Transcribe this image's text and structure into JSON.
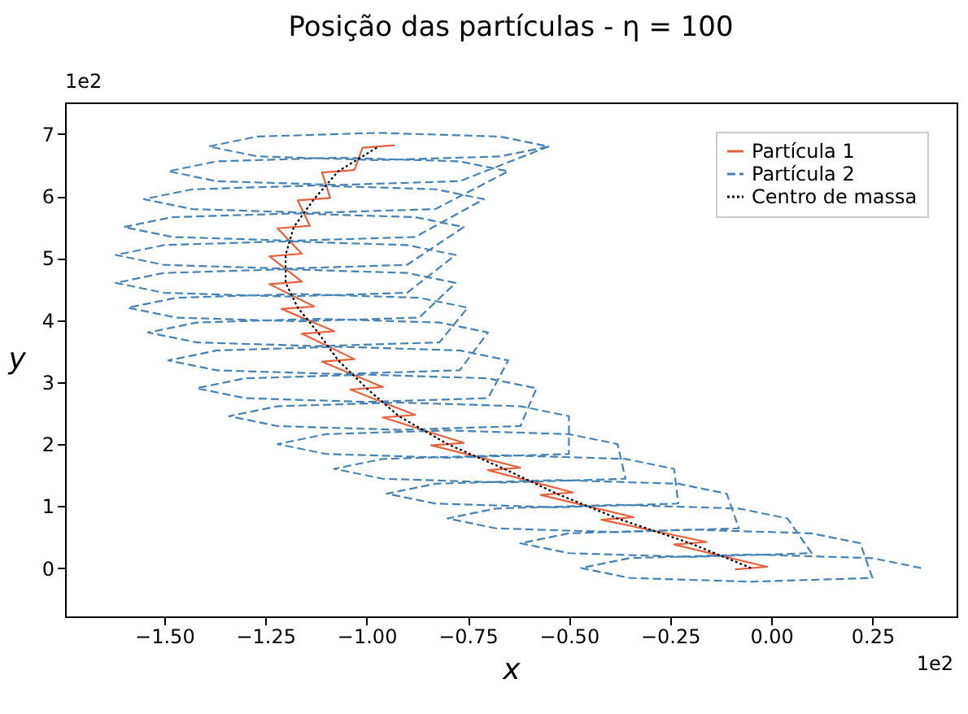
{
  "chart_data": {
    "type": "line",
    "title": "Posição das partículas - η = 100",
    "xlabel": "x",
    "ylabel": "y",
    "annotations": [
      "1e2",
      "1e2"
    ],
    "xlim": [
      -1.745,
      0.458
    ],
    "ylim": [
      -0.78,
      7.51
    ],
    "xticks": [
      {
        "value": -1.5,
        "label": "−1.50"
      },
      {
        "value": -1.25,
        "label": "−1.25"
      },
      {
        "value": -1.0,
        "label": "−1.00"
      },
      {
        "value": -0.75,
        "label": "−0.75"
      },
      {
        "value": -0.5,
        "label": "−0.50"
      },
      {
        "value": -0.25,
        "label": "−0.25"
      },
      {
        "value": 0,
        "label": "0.00"
      },
      {
        "value": 0.25,
        "label": "0.25"
      }
    ],
    "yticks": [
      0,
      1,
      2,
      3,
      4,
      5,
      6,
      7
    ],
    "legend": "top right",
    "marker": "none",
    "series": [
      {
        "name": "Partícula 1",
        "color": "#e8603c",
        "line_style": "solid",
        "x": [
          -0.09,
          -0.01,
          -0.24,
          -0.16,
          -0.42,
          -0.34,
          -0.57,
          -0.49,
          -0.7,
          -0.62,
          -0.84,
          -0.76,
          -0.96,
          -0.88,
          -1.04,
          -0.96,
          -1.11,
          -1.03,
          -1.16,
          -1.08,
          -1.21,
          -1.13,
          -1.24,
          -1.16,
          -1.24,
          -1.16,
          -1.22,
          -1.14,
          -1.17,
          -1.09,
          -1.11,
          -1.03,
          -1.01,
          -0.93
        ],
        "values": [
          -0.02,
          0.02,
          0.38,
          0.42,
          0.78,
          0.82,
          1.18,
          1.22,
          1.58,
          1.62,
          1.98,
          2.02,
          2.43,
          2.47,
          2.88,
          2.92,
          3.33,
          3.37,
          3.78,
          3.82,
          4.18,
          4.22,
          4.58,
          4.62,
          5.03,
          5.07,
          5.48,
          5.52,
          5.93,
          5.97,
          6.38,
          6.42,
          6.78,
          6.82
        ]
      },
      {
        "name": "Partícula 2",
        "color": "#4682b4",
        "line_style": "dashed",
        "x": [
          0.37,
          0.25,
          -0.05,
          -0.35,
          -0.47,
          -0.35,
          -0.05,
          0.25,
          0.22,
          0.1,
          -0.2,
          -0.5,
          -0.62,
          -0.5,
          -0.2,
          0.1,
          0.04,
          -0.08,
          -0.38,
          -0.68,
          -0.8,
          -0.68,
          -0.38,
          -0.08,
          -0.11,
          -0.23,
          -0.53,
          -0.83,
          -0.95,
          -0.83,
          -0.53,
          -0.23,
          -0.24,
          -0.36,
          -0.66,
          -0.96,
          -1.08,
          -0.96,
          -0.66,
          -0.36,
          -0.38,
          -0.5,
          -0.8,
          -1.1,
          -1.22,
          -1.1,
          -0.8,
          -0.5,
          -0.5,
          -0.62,
          -0.92,
          -1.22,
          -1.34,
          -1.22,
          -0.92,
          -0.62,
          -0.58,
          -0.7,
          -1.0,
          -1.3,
          -1.42,
          -1.3,
          -1.0,
          -0.7,
          -0.65,
          -0.77,
          -1.07,
          -1.37,
          -1.49,
          -1.37,
          -1.07,
          -0.77,
          -0.7,
          -0.82,
          -1.12,
          -1.42,
          -1.54,
          -1.42,
          -1.12,
          -0.82,
          -0.75,
          -0.87,
          -1.17,
          -1.47,
          -1.59,
          -1.47,
          -1.17,
          -0.87,
          -0.78,
          -0.9,
          -1.2,
          -1.5,
          -1.62,
          -1.5,
          -1.2,
          -0.9,
          -0.78,
          -0.9,
          -1.2,
          -1.5,
          -1.62,
          -1.5,
          -1.2,
          -0.9,
          -0.76,
          -0.88,
          -1.18,
          -1.48,
          -1.6,
          -1.48,
          -1.18,
          -0.88,
          -0.71,
          -0.83,
          -1.13,
          -1.43,
          -1.55,
          -1.43,
          -1.13,
          -0.83,
          -0.65,
          -0.77,
          -1.07,
          -1.37,
          -1.49,
          -1.37,
          -1.07,
          -0.77,
          -0.55,
          -0.67,
          -0.97,
          -1.27,
          -1.39,
          -1.27,
          -0.97,
          -0.67,
          -0.55
        ],
        "values": [
          0,
          0.16,
          0.22,
          0.16,
          0,
          -0.16,
          -0.22,
          -0.16,
          0.4,
          0.56,
          0.62,
          0.56,
          0.4,
          0.24,
          0.18,
          0.24,
          0.8,
          0.96,
          1.02,
          0.96,
          0.8,
          0.64,
          0.58,
          0.64,
          1.2,
          1.36,
          1.42,
          1.36,
          1.2,
          1.04,
          0.98,
          1.04,
          1.6,
          1.76,
          1.82,
          1.76,
          1.6,
          1.44,
          1.38,
          1.44,
          2.0,
          2.16,
          2.22,
          2.16,
          2.0,
          1.84,
          1.78,
          1.84,
          2.45,
          2.61,
          2.67,
          2.61,
          2.45,
          2.29,
          2.23,
          2.29,
          2.9,
          3.06,
          3.12,
          3.06,
          2.9,
          2.74,
          2.68,
          2.74,
          3.35,
          3.51,
          3.57,
          3.51,
          3.35,
          3.19,
          3.13,
          3.19,
          3.8,
          3.96,
          4.02,
          3.96,
          3.8,
          3.64,
          3.58,
          3.64,
          4.2,
          4.36,
          4.42,
          4.36,
          4.2,
          4.04,
          3.98,
          4.04,
          4.6,
          4.76,
          4.82,
          4.76,
          4.6,
          4.44,
          4.38,
          4.44,
          5.05,
          5.21,
          5.27,
          5.21,
          5.05,
          4.89,
          4.83,
          4.89,
          5.5,
          5.66,
          5.72,
          5.66,
          5.5,
          5.34,
          5.28,
          5.34,
          5.95,
          6.11,
          6.17,
          6.11,
          5.95,
          5.79,
          5.73,
          5.79,
          6.4,
          6.56,
          6.62,
          6.56,
          6.4,
          6.24,
          6.18,
          6.24,
          6.8,
          6.96,
          7.02,
          6.96,
          6.8,
          6.64,
          6.58,
          6.64,
          6.8
        ]
      },
      {
        "name": "Centro de massa",
        "color": "#000000",
        "line_style": "dotted",
        "x": [
          -0.05,
          -0.2,
          -0.38,
          -0.53,
          -0.66,
          -0.8,
          -0.92,
          -1.0,
          -1.07,
          -1.12,
          -1.17,
          -1.2,
          -1.2,
          -1.18,
          -1.13,
          -1.07,
          -0.97
        ],
        "values": [
          0,
          0.4,
          0.8,
          1.2,
          1.6,
          2.0,
          2.45,
          2.9,
          3.35,
          3.8,
          4.2,
          4.6,
          5.05,
          5.5,
          5.95,
          6.4,
          6.8
        ]
      }
    ]
  }
}
